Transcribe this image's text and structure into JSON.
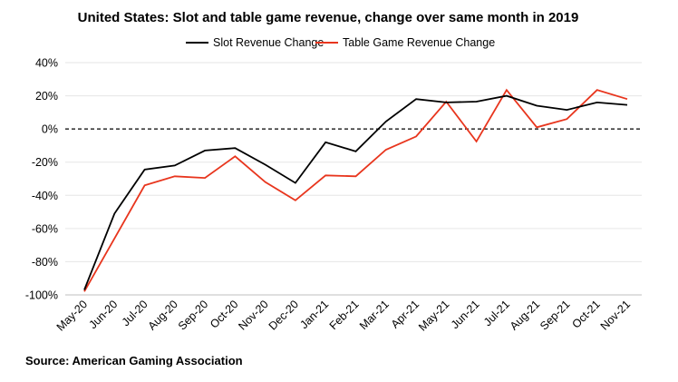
{
  "chart_data": {
    "type": "line",
    "title": "United States: Slot and table game revenue, change over same month in 2019",
    "xlabel": "",
    "ylabel": "",
    "categories": [
      "May-20",
      "Jun-20",
      "Jul-20",
      "Aug-20",
      "Sep-20",
      "Oct-20",
      "Nov-20",
      "Dec-20",
      "Jan-21",
      "Feb-21",
      "Mar-21",
      "Apr-21",
      "May-21",
      "Jun-21",
      "Jul-21",
      "Aug-21",
      "Sep-21",
      "Oct-21",
      "Nov-21"
    ],
    "ylim": [
      -100,
      40
    ],
    "yticks": [
      40,
      20,
      0,
      -20,
      -40,
      -60,
      -80,
      -100
    ],
    "ytick_labels": [
      "40%",
      "20%",
      "0%",
      "-20%",
      "-40%",
      "-60%",
      "-80%",
      "-100%"
    ],
    "grid": true,
    "zero_line": "dashed",
    "legend_position": "top",
    "series": [
      {
        "name": "Slot Revenue Change",
        "color": "#000000",
        "values": [
          -97,
          -51,
          -24.5,
          -22,
          -13,
          -11.5,
          -21.5,
          -32.5,
          -8,
          -13.5,
          4.5,
          18,
          16,
          16.5,
          20,
          14,
          11.5,
          16,
          14.5
        ]
      },
      {
        "name": "Table Game Revenue Change",
        "color": "#e8351d",
        "values": [
          -98,
          -66,
          -34,
          -28.5,
          -29.5,
          -16.5,
          -32,
          -43,
          -28,
          -28.5,
          -12.5,
          -4.5,
          16.5,
          -7.5,
          23.5,
          1,
          6,
          23.5,
          18
        ]
      }
    ]
  },
  "footer": {
    "source": "Source: American Gaming Association"
  },
  "colors": {
    "gridline": "#e6e6e6",
    "zero_line": "#000000",
    "axis": "#bfbfbf"
  }
}
